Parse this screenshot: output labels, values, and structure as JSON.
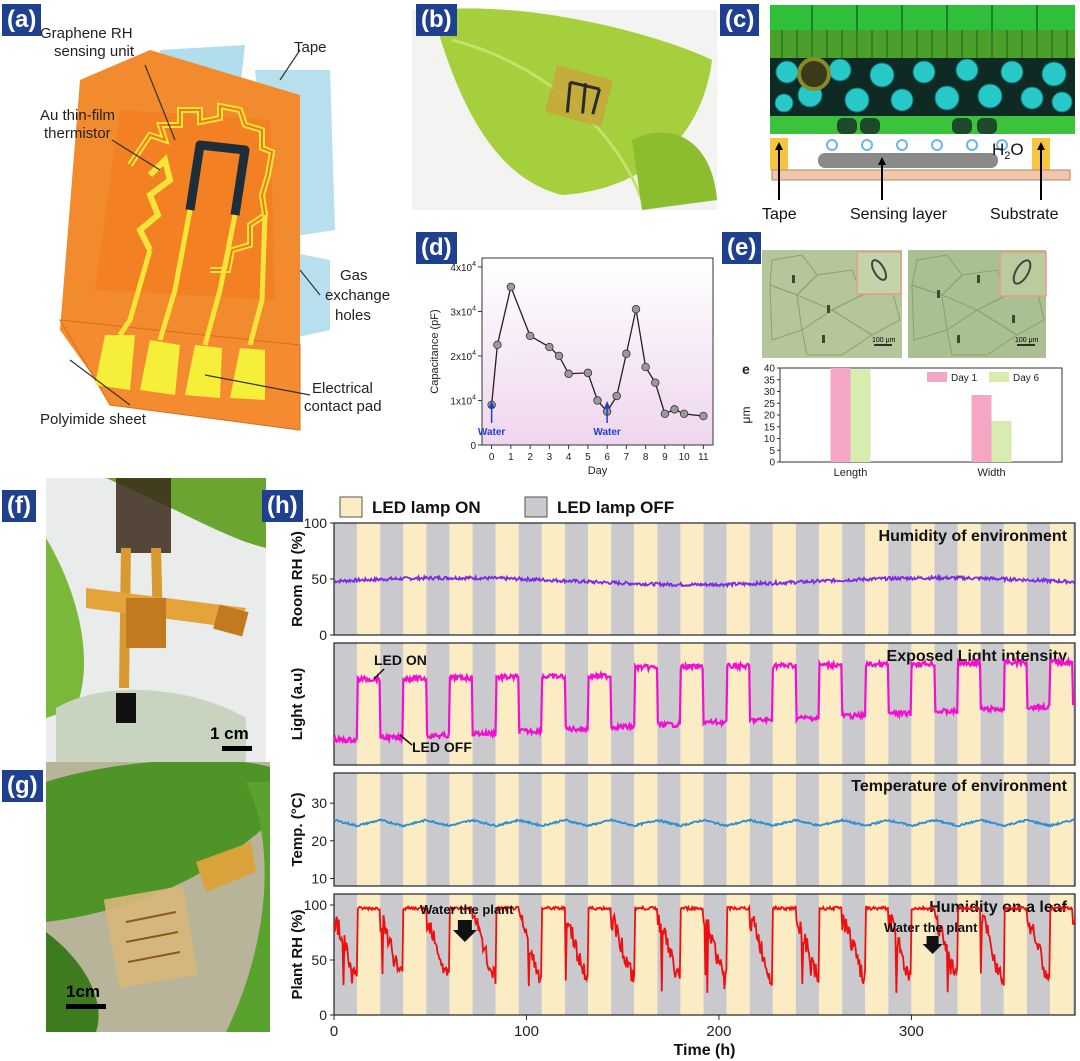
{
  "panel_labels": {
    "a": "(a)",
    "b": "(b)",
    "c": "(c)",
    "d": "(d)",
    "e": "(e)",
    "f": "(f)",
    "g": "(g)",
    "h": "(h)"
  },
  "panel_a": {
    "labels": [
      "Graphene RH sensing unit",
      "Au thin-film thermistor",
      "Tape",
      "Gas exchange holes",
      "Electrical contact pad",
      "Polyimide sheet"
    ],
    "graphene_l1": "Graphene RH",
    "graphene_l2": "sensing unit",
    "au_l1": "Au thin-film",
    "au_l2": "thermistor",
    "tape": "Tape",
    "gas_l1": "Gas",
    "gas_l2": "exchange",
    "gas_l3": "holes",
    "contact_l1": "Electrical",
    "contact_l2": "contact pad",
    "polyimide": "Polyimide sheet"
  },
  "panel_c": {
    "tape": "Tape",
    "sensing": "Sensing layer",
    "substrate": "Substrate",
    "h2o": "H",
    "h2o_sub": "2",
    "h2o_o": "O"
  },
  "panel_e": {
    "scale1": "100 μm",
    "scale2": "100 μm"
  },
  "panel_f": {
    "scale": "1 cm"
  },
  "panel_g": {
    "scale": "1cm"
  },
  "chart_d": {
    "type": "line",
    "x": [
      0,
      0.3,
      1,
      2,
      3,
      3.5,
      4,
      5,
      5.5,
      6,
      6.5,
      7,
      7.5,
      8,
      8.5,
      9,
      9.5,
      10,
      11
    ],
    "y": [
      9000,
      22500,
      35500,
      24500,
      22000,
      20000,
      16000,
      16200,
      10000,
      7500,
      11000,
      20500,
      30500,
      17500,
      14000,
      7000,
      8000,
      7000,
      6500
    ],
    "xlabel": "Day",
    "ylabel": "Capacitance (pF)",
    "xticks": [
      "0",
      "1",
      "2",
      "3",
      "4",
      "5",
      "6",
      "7",
      "8",
      "9",
      "10",
      "11"
    ],
    "yticks": [
      "0",
      "1x10",
      "2x10",
      "3x10",
      "4x10"
    ],
    "ytick_exp": "4",
    "xlim": [
      -0.5,
      11.5
    ],
    "ylim": [
      0,
      42000
    ],
    "annotations": [
      {
        "x": 0,
        "text": "Water"
      },
      {
        "x": 6,
        "text": "Water"
      }
    ]
  },
  "chart_e": {
    "type": "bar",
    "panel_letter": "e",
    "categories": [
      "Length",
      "Width"
    ],
    "series": [
      {
        "name": "Day 1",
        "values": [
          40,
          28.5
        ],
        "color": "#f4a6c4"
      },
      {
        "name": "Day 6",
        "values": [
          39.5,
          17.5
        ],
        "color": "#d8ecb0"
      }
    ],
    "ylabel": "μm",
    "ylim": [
      0,
      40
    ],
    "yticks": [
      "0",
      "5",
      "10",
      "15",
      "20",
      "25",
      "30",
      "35",
      "40"
    ],
    "legend": "top-right"
  },
  "chart_h": {
    "type": "line",
    "legend": [
      {
        "name": "LED lamp ON",
        "color": "#fbecc4"
      },
      {
        "name": "LED lamp OFF",
        "color": "#c9c9ce"
      }
    ],
    "xlabel": "Time (h)",
    "xlim": [
      0,
      385
    ],
    "xticks": [
      "0",
      "100",
      "200",
      "300"
    ],
    "led_period_h": 24,
    "rows": [
      {
        "ylabel": "Room RH (%)",
        "title": "Humidity of environment",
        "yticks": [
          "0",
          "50",
          "100"
        ],
        "ylim": [
          0,
          100
        ],
        "color": "#7b2be0"
      },
      {
        "ylabel": "Light (a.u)",
        "title": "Exposed Light intensity",
        "yticks": [],
        "color": "#f20fcf",
        "annot_on": "LED ON",
        "annot_off": "LED OFF"
      },
      {
        "ylabel": "Temp. (°C)",
        "title": "Temperature of environment",
        "yticks": [
          "10",
          "20",
          "30"
        ],
        "ylim": [
          8,
          38
        ],
        "color": "#2a8fd0"
      },
      {
        "ylabel": "Plant RH (%)",
        "title": "Humidity on a leaf",
        "yticks": [
          "0",
          "50",
          "100"
        ],
        "ylim": [
          0,
          110
        ],
        "color": "#ee1010",
        "annot_water1": "Water the plant",
        "annot_water2": "Water the plant"
      }
    ]
  }
}
